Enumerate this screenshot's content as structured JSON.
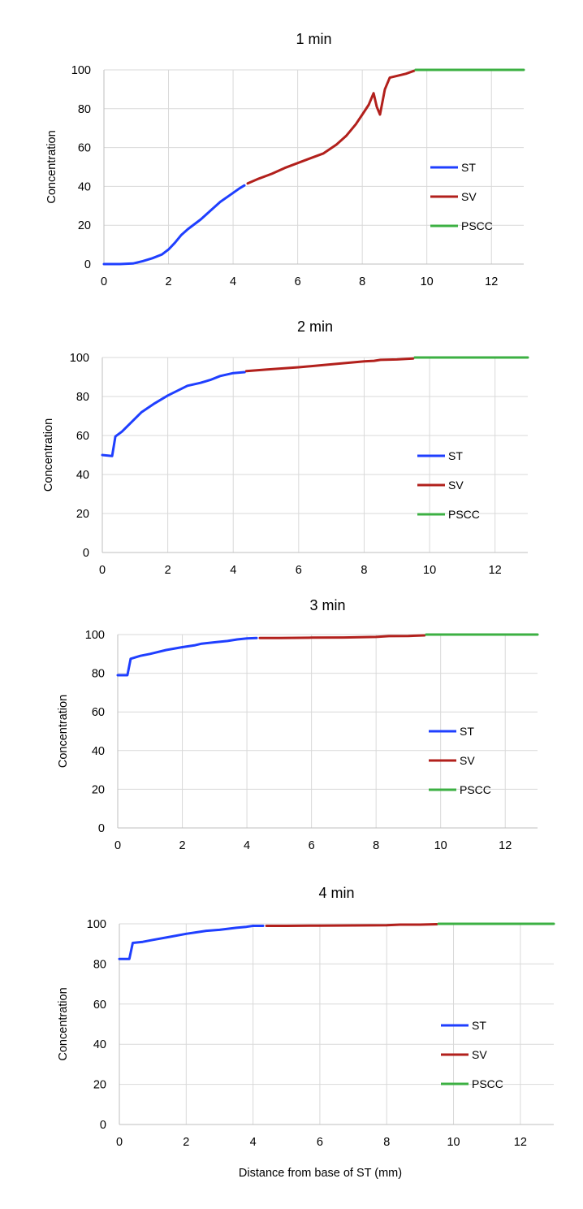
{
  "colors": {
    "ST": "#1f3fff",
    "SV": "#b2201c",
    "PSCC": "#3cb043"
  },
  "chart_data": [
    {
      "type": "line",
      "title": "1 min",
      "ylabel": "Concentration",
      "xlabel": "",
      "xlim": [
        0,
        13
      ],
      "ylim": [
        0,
        100
      ],
      "xticks": [
        0,
        2,
        4,
        6,
        8,
        10,
        12
      ],
      "yticks": [
        0,
        20,
        40,
        60,
        80,
        100
      ],
      "grid": true,
      "legend": [
        "ST",
        "SV",
        "PSCC"
      ],
      "series": [
        {
          "name": "ST",
          "color": "#1f3fff",
          "x": [
            0,
            0.5,
            0.9,
            1.2,
            1.5,
            1.8,
            2.0,
            2.2,
            2.4,
            2.6,
            3.0,
            3.3,
            3.6,
            3.9,
            4.2,
            4.35
          ],
          "y": [
            0,
            0,
            0.3,
            1.5,
            3,
            5,
            7.5,
            11,
            15,
            18,
            23,
            27.5,
            32,
            35.5,
            39,
            40.5
          ]
        },
        {
          "name": "SV",
          "color": "#b2201c",
          "x": [
            4.45,
            4.8,
            5.2,
            5.6,
            6.0,
            6.4,
            6.8,
            7.2,
            7.5,
            7.8,
            8.0,
            8.2,
            8.35,
            8.45,
            8.55,
            8.7,
            8.85,
            9.1,
            9.35,
            9.6
          ],
          "y": [
            41.5,
            44,
            46.5,
            49.5,
            52,
            54.5,
            57,
            61.5,
            66,
            72,
            77,
            82,
            88,
            81,
            77,
            90,
            96,
            97,
            98,
            99.5
          ]
        },
        {
          "name": "PSCC",
          "color": "#3cb043",
          "x": [
            9.65,
            13
          ],
          "y": [
            100,
            100
          ]
        }
      ]
    },
    {
      "type": "line",
      "title": "2 min",
      "ylabel": "Concentration",
      "xlabel": "",
      "xlim": [
        0,
        13
      ],
      "ylim": [
        0,
        100
      ],
      "xticks": [
        0,
        2,
        4,
        6,
        8,
        10,
        12
      ],
      "yticks": [
        0,
        20,
        40,
        60,
        80,
        100
      ],
      "grid": true,
      "legend": [
        "ST",
        "SV",
        "PSCC"
      ],
      "series": [
        {
          "name": "ST",
          "color": "#1f3fff",
          "x": [
            0,
            0.3,
            0.4,
            0.6,
            0.9,
            1.2,
            1.6,
            2.0,
            2.3,
            2.6,
            3.0,
            3.3,
            3.6,
            4.0,
            4.35
          ],
          "y": [
            50,
            49.5,
            59.5,
            62,
            67,
            72,
            76.5,
            80.5,
            83,
            85.5,
            87,
            88.5,
            90.5,
            92,
            92.5
          ]
        },
        {
          "name": "SV",
          "color": "#b2201c",
          "x": [
            4.4,
            5.0,
            6.0,
            7.0,
            8.0,
            8.3,
            8.5,
            9.0,
            9.5
          ],
          "y": [
            93,
            93.8,
            95,
            96.5,
            98,
            98.3,
            98.8,
            99,
            99.5
          ]
        },
        {
          "name": "PSCC",
          "color": "#3cb043",
          "x": [
            9.55,
            13
          ],
          "y": [
            100,
            100
          ]
        }
      ]
    },
    {
      "type": "line",
      "title": "3 min",
      "ylabel": "Concentration",
      "xlabel": "",
      "xlim": [
        0,
        13
      ],
      "ylim": [
        0,
        100
      ],
      "xticks": [
        0,
        2,
        4,
        6,
        8,
        10,
        12
      ],
      "yticks": [
        0,
        20,
        40,
        60,
        80,
        100
      ],
      "grid": true,
      "legend": [
        "ST",
        "SV",
        "PSCC"
      ],
      "series": [
        {
          "name": "ST",
          "color": "#1f3fff",
          "x": [
            0,
            0.3,
            0.4,
            0.7,
            1.0,
            1.5,
            2.0,
            2.4,
            2.6,
            3.0,
            3.4,
            3.7,
            4.0,
            4.3
          ],
          "y": [
            79,
            79,
            87.5,
            89,
            90,
            92,
            93.5,
            94.5,
            95.3,
            96,
            96.7,
            97.5,
            98,
            98.2
          ]
        },
        {
          "name": "SV",
          "color": "#b2201c",
          "x": [
            4.4,
            5.0,
            6.0,
            7.0,
            8.0,
            8.4,
            9.0,
            9.5
          ],
          "y": [
            98.2,
            98.2,
            98.4,
            98.5,
            98.8,
            99.2,
            99.3,
            99.6
          ]
        },
        {
          "name": "PSCC",
          "color": "#3cb043",
          "x": [
            9.55,
            13
          ],
          "y": [
            100,
            100
          ]
        }
      ]
    },
    {
      "type": "line",
      "title": "4 min",
      "ylabel": "Concentration",
      "xlabel": "Distance from base of ST (mm)",
      "xlim": [
        0,
        13
      ],
      "ylim": [
        0,
        100
      ],
      "xticks": [
        0,
        2,
        4,
        6,
        8,
        10,
        12
      ],
      "yticks": [
        0,
        20,
        40,
        60,
        80,
        100
      ],
      "grid": true,
      "legend": [
        "ST",
        "SV",
        "PSCC"
      ],
      "series": [
        {
          "name": "ST",
          "color": "#1f3fff",
          "x": [
            0,
            0.3,
            0.4,
            0.7,
            1.0,
            1.5,
            2.0,
            2.4,
            2.6,
            3.0,
            3.5,
            3.8,
            4.0,
            4.3
          ],
          "y": [
            82.5,
            82.5,
            90.5,
            91,
            92,
            93.5,
            95,
            96,
            96.5,
            97,
            98,
            98.5,
            99,
            99
          ]
        },
        {
          "name": "SV",
          "color": "#b2201c",
          "x": [
            4.4,
            5.0,
            6.0,
            7.0,
            8.0,
            8.4,
            9.0,
            9.5
          ],
          "y": [
            99,
            99,
            99.1,
            99.2,
            99.3,
            99.6,
            99.6,
            99.8
          ]
        },
        {
          "name": "PSCC",
          "color": "#3cb043",
          "x": [
            9.55,
            13
          ],
          "y": [
            100,
            100
          ]
        }
      ]
    }
  ]
}
